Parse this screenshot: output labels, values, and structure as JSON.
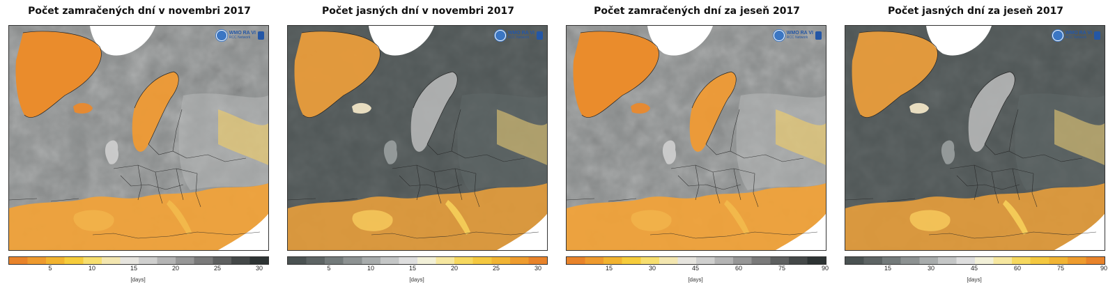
{
  "panels": [
    {
      "title": "Počet zamračených dní v novembri 2017",
      "scheme": "cloudy",
      "colorbar": {
        "colors": [
          "#e8832a",
          "#ee9a2e",
          "#f2b330",
          "#f6cc3b",
          "#f7de6e",
          "#f3e6b0",
          "#e6e4de",
          "#cfcfce",
          "#b4b4b4",
          "#979797",
          "#7a7a7a",
          "#5e6060",
          "#444848",
          "#2d3333"
        ],
        "ticks": [
          "5",
          "10",
          "15",
          "20",
          "25",
          "30"
        ],
        "tick_values": [
          5,
          10,
          15,
          20,
          25,
          30
        ],
        "range": [
          0,
          31
        ],
        "unit": "[days]"
      },
      "logo": {
        "text": "WMO RA VI",
        "sub": "RCC Network"
      }
    },
    {
      "title": "Počet jasných dní v novembri 2017",
      "scheme": "clear",
      "colorbar": {
        "colors": [
          "#4a5252",
          "#5d6464",
          "#737a7a",
          "#8d9292",
          "#a8acac",
          "#c4c6c6",
          "#dedede",
          "#f2f0d8",
          "#f6e7a0",
          "#f6d85f",
          "#f4c840",
          "#f1b434",
          "#ee9c2e",
          "#e8832a"
        ],
        "ticks": [
          "5",
          "10",
          "15",
          "20",
          "25",
          "30"
        ],
        "tick_values": [
          5,
          10,
          15,
          20,
          25,
          30
        ],
        "range": [
          0,
          31
        ],
        "unit": "[days]"
      },
      "logo": {
        "text": "WMO RA VI",
        "sub": "RCC Network"
      }
    },
    {
      "title": "Počet zamračených dní za jeseň 2017",
      "scheme": "cloudy",
      "colorbar": {
        "colors": [
          "#e8832a",
          "#ee9a2e",
          "#f2b330",
          "#f6cc3b",
          "#f7de6e",
          "#f3e6b0",
          "#e6e4de",
          "#cfcfce",
          "#b4b4b4",
          "#979797",
          "#7a7a7a",
          "#5e6060",
          "#444848",
          "#2d3333"
        ],
        "ticks": [
          "15",
          "30",
          "45",
          "60",
          "75",
          "90"
        ],
        "tick_values": [
          15,
          30,
          45,
          60,
          75,
          90
        ],
        "range": [
          0,
          90
        ],
        "unit": "[days]"
      },
      "logo": {
        "text": "WMO RA VI",
        "sub": "RCC Network"
      }
    },
    {
      "title": "Počet jasných dní za jeseň 2017",
      "scheme": "clear",
      "colorbar": {
        "colors": [
          "#4a5252",
          "#5d6464",
          "#737a7a",
          "#8d9292",
          "#a8acac",
          "#c4c6c6",
          "#dedede",
          "#f2f0d8",
          "#f6e7a0",
          "#f6d85f",
          "#f4c840",
          "#f1b434",
          "#ee9c2e",
          "#e8832a"
        ],
        "ticks": [
          "15",
          "30",
          "45",
          "60",
          "75",
          "90"
        ],
        "tick_values": [
          15,
          30,
          45,
          60,
          75,
          90
        ],
        "range": [
          0,
          90
        ],
        "unit": "[days]"
      },
      "logo": {
        "text": "WMO RA VI",
        "sub": "RCC Network"
      }
    }
  ],
  "palette": {
    "ocean_cloudy": "#8a8d8d",
    "ocean_clear": "#4f5656",
    "land_south": "#f0a23a",
    "greenland": "#ea8c2c",
    "boundary": "#222222"
  }
}
